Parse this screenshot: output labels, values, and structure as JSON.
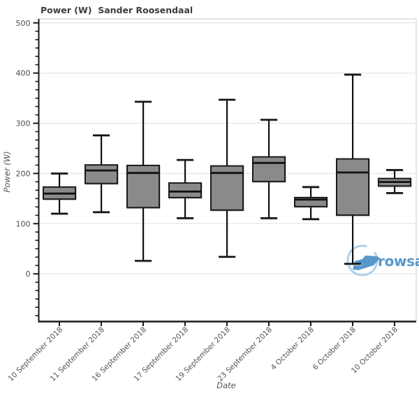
{
  "title": "Power (W)  Sander Roosendaal",
  "watermark": {
    "text": "rowsandall",
    "text_color": "#4a8fc6",
    "circle_color": "#a9cbe8",
    "boat_color": "#4a8fc6"
  },
  "chart_data": {
    "type": "boxplot",
    "title": "Power (W)  Sander Roosendaal",
    "xlabel": "Date",
    "ylabel": "Power (W)",
    "ylim": [
      -95,
      508
    ],
    "yticks": [
      0,
      100,
      200,
      300,
      400,
      500
    ],
    "grid": true,
    "legend": "none",
    "box_fill": "#8a8a8a",
    "box_stroke": "#1a1a1a",
    "categories": [
      "10 September 2018",
      "11 September 2018",
      "16 September 2018",
      "17 September 2018",
      "19 September 2018",
      "23 September 2018",
      "4 October 2018",
      "6 October 2018",
      "10 October 2018"
    ],
    "series": [
      {
        "name": "10 September 2018",
        "low": 120,
        "q1": 149,
        "median": 160,
        "q3": 173,
        "high": 200
      },
      {
        "name": "11 September 2018",
        "low": 123,
        "q1": 180,
        "median": 206,
        "q3": 217,
        "high": 276
      },
      {
        "name": "16 September 2018",
        "low": 26,
        "q1": 132,
        "median": 201,
        "q3": 216,
        "high": 343
      },
      {
        "name": "17 September 2018",
        "low": 111,
        "q1": 152,
        "median": 164,
        "q3": 181,
        "high": 227
      },
      {
        "name": "19 September 2018",
        "low": 34,
        "q1": 127,
        "median": 201,
        "q3": 215,
        "high": 347
      },
      {
        "name": "23 September 2018",
        "low": 111,
        "q1": 184,
        "median": 221,
        "q3": 233,
        "high": 307
      },
      {
        "name": "4 October 2018",
        "low": 109,
        "q1": 134,
        "median": 148,
        "q3": 152,
        "high": 173
      },
      {
        "name": "6 October 2018",
        "low": 20,
        "q1": 117,
        "median": 202,
        "q3": 229,
        "high": 397
      },
      {
        "name": "10 October 2018",
        "low": 161,
        "q1": 175,
        "median": 183,
        "q3": 190,
        "high": 207
      }
    ]
  }
}
